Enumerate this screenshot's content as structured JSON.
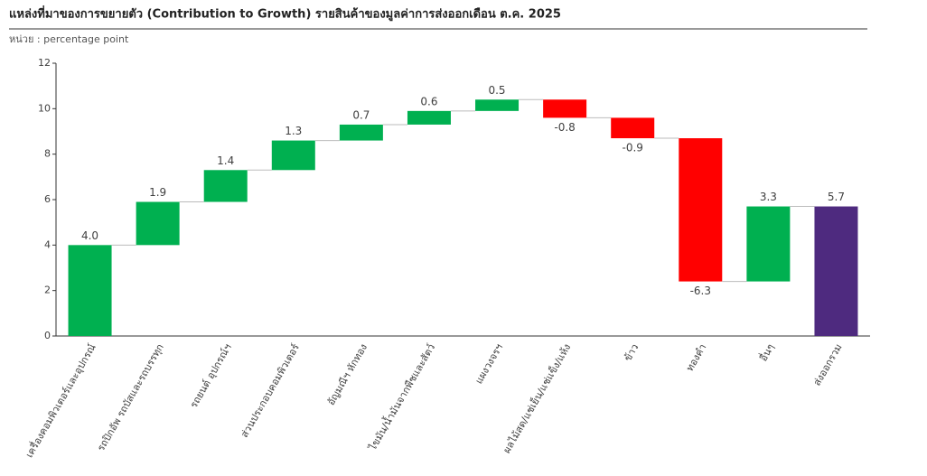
{
  "chart_data": {
    "type": "waterfall",
    "title": "แหล่งที่มาของการขยายตัว (Contribution to Growth) รายสินค้าของมูลค่าการส่งออกเดือน ต.ค. 2025",
    "subtitle": "หน่วย : percentage point",
    "categories": [
      "เครื่องคอมพิวเตอร์และอุปกรณ์",
      "รถปิกอัพ รถบัสและรถบรรทุก",
      "รถยนต์ อุปกรณ์ฯ",
      "ส่วนประกอบคอมพิวเตอร์",
      "อัญมณีฯ หักทอง",
      "ไขมัน/น้ำมันจากพืชและสัตว์",
      "แผงวงจรฯ",
      "ผลไม้สด/แช่เย็น/แช่แข็ง/แห้ง",
      "ข้าว",
      "ทองคำ",
      "อื่นๆ",
      "ส่งออกรวม"
    ],
    "values": [
      4.0,
      1.9,
      1.4,
      1.3,
      0.7,
      0.6,
      0.5,
      -0.8,
      -0.9,
      -6.3,
      3.3,
      5.7
    ],
    "value_labels": [
      "4.0",
      "1.9",
      "1.4",
      "1.3",
      "0.7",
      "0.6",
      "0.5",
      "-0.8",
      "-0.9",
      "-6.3",
      "3.3",
      "5.7"
    ],
    "is_total": [
      false,
      false,
      false,
      false,
      false,
      false,
      false,
      false,
      false,
      false,
      false,
      true
    ],
    "increase_color": "#00b050",
    "decrease_color": "#ff0000",
    "total_color": "#4e2a7f",
    "ylim": [
      0,
      12
    ],
    "yticks": [
      0,
      2,
      4,
      6,
      8,
      10,
      12
    ],
    "grid": false
  }
}
